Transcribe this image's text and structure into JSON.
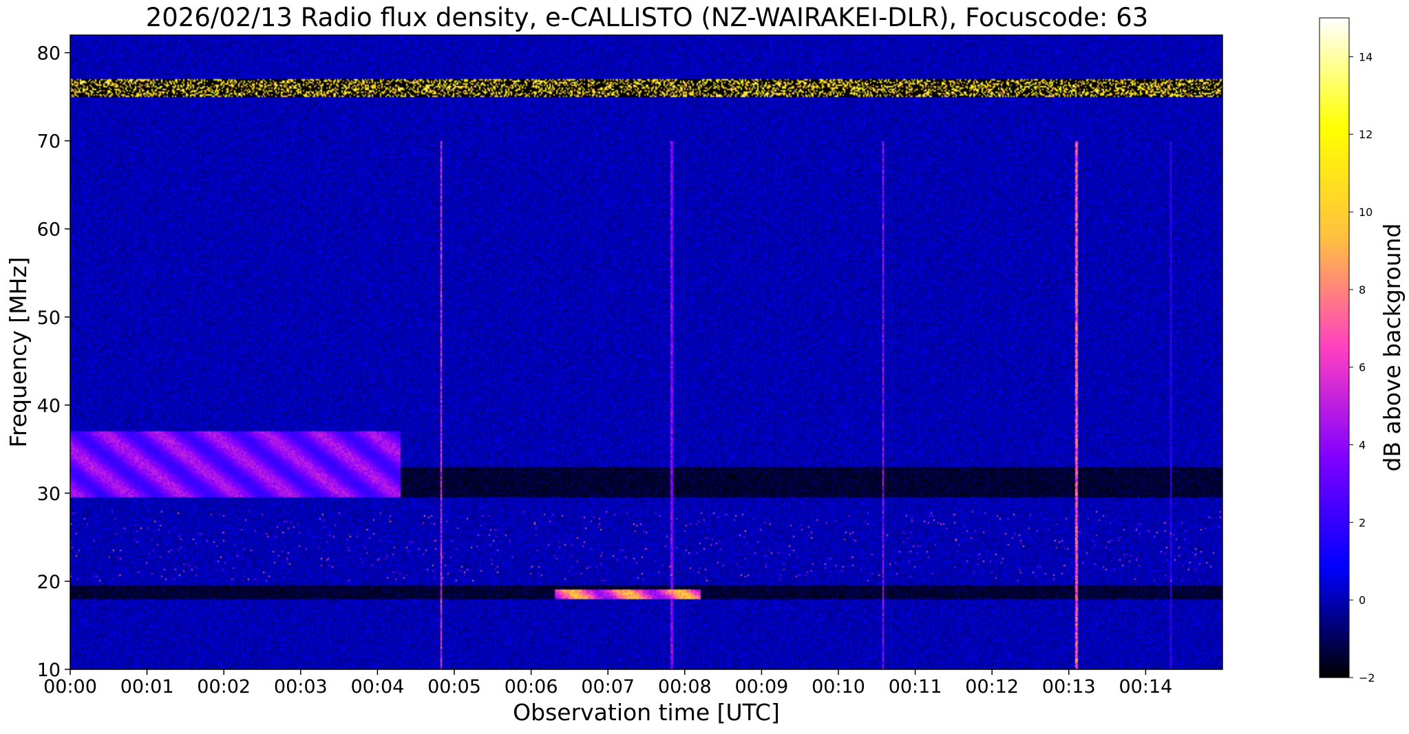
{
  "chart_data": {
    "type": "heatmap",
    "title": "2026/02/13  Radio flux density, e-CALLISTO (NZ-WAIRAKEI-DLR), Focuscode: 63",
    "xlabel": "Observation time [UTC]",
    "ylabel": "Frequency [MHz]",
    "colorbar_label": "dB above background",
    "x_ticks": [
      "00:00",
      "00:01",
      "00:02",
      "00:03",
      "00:04",
      "00:05",
      "00:06",
      "00:07",
      "00:08",
      "00:09",
      "00:10",
      "00:11",
      "00:12",
      "00:13",
      "00:14"
    ],
    "xlim_minutes": [
      0,
      15
    ],
    "y_ticks": [
      10,
      20,
      30,
      40,
      50,
      60,
      70,
      80
    ],
    "ylim": [
      10,
      82
    ],
    "colorbar_ticks": [
      -2,
      0,
      2,
      4,
      6,
      8,
      10,
      12,
      14
    ],
    "colorbar_range": [
      -2,
      15
    ],
    "colormap": "gnuplot2",
    "colormap_stops": [
      "#000000",
      "#0000ff",
      "#8000ff",
      "#ff40c0",
      "#ffc040",
      "#ffff00",
      "#ffffff"
    ],
    "background_level_db": 0,
    "features": [
      {
        "type": "interference-band",
        "freq_mhz": [
          75,
          77
        ],
        "level_db": 14
      },
      {
        "type": "enhanced-band",
        "freq_mhz": [
          29.5,
          37
        ],
        "time_minutes": [
          0,
          4.3
        ],
        "level_db": 5
      },
      {
        "type": "depressed-band",
        "freq_mhz": [
          29.5,
          33
        ],
        "time_minutes": [
          4.3,
          15
        ],
        "level_db": -2
      },
      {
        "type": "depressed-band",
        "freq_mhz": [
          18,
          19.5
        ],
        "time_minutes": [
          0,
          15
        ],
        "level_db": -2
      },
      {
        "type": "enhanced-band",
        "freq_mhz": [
          18,
          19
        ],
        "time_minutes": [
          6.3,
          8.2
        ],
        "level_db": 10
      },
      {
        "type": "vertical-spike",
        "time_minutes": 4.83,
        "level_db": 8
      },
      {
        "type": "vertical-spike",
        "time_minutes": 7.83,
        "level_db": 5
      },
      {
        "type": "vertical-spike",
        "time_minutes": 10.58,
        "level_db": 6
      },
      {
        "type": "vertical-spike",
        "time_minutes": 13.1,
        "level_db": 9
      },
      {
        "type": "vertical-spike",
        "time_minutes": 14.33,
        "level_db": 3
      }
    ]
  }
}
